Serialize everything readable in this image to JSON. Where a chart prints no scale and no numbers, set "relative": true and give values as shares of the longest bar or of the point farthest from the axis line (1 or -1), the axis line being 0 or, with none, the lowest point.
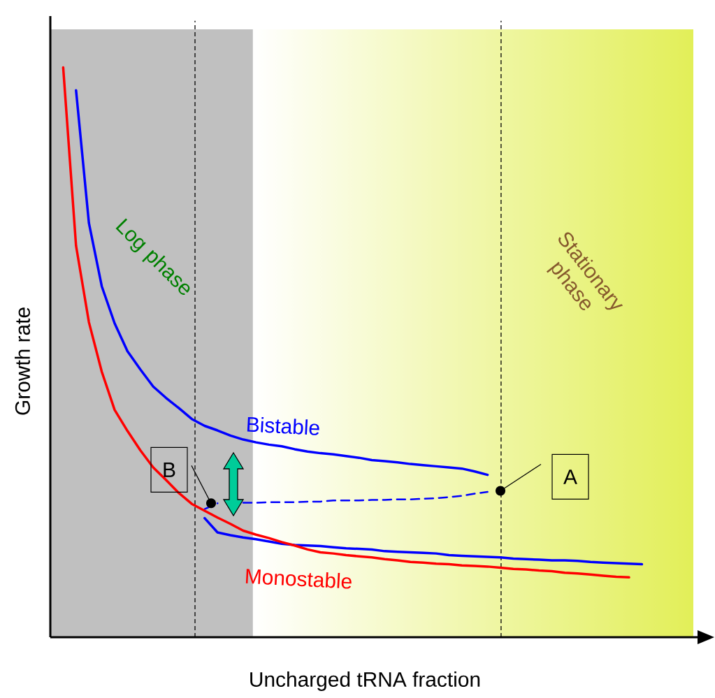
{
  "chart_data": {
    "type": "line",
    "relative": true,
    "xlabel": "Uncharged tRNA fraction",
    "ylabel": "Growth rate",
    "categories": [
      null,
      null,
      null,
      null,
      null,
      null,
      null,
      null,
      null,
      null,
      null,
      null,
      null,
      null,
      null,
      null,
      null,
      null,
      null,
      null,
      null,
      null,
      null,
      null,
      null,
      null,
      null,
      null,
      null,
      null,
      null,
      null,
      null,
      null,
      null,
      null,
      null,
      null,
      null,
      null,
      null,
      null,
      null,
      null,
      null,
      null,
      null
    ],
    "series": [
      {
        "name": "Bistable",
        "color": "#0000ff",
        "line_style": "solid",
        "values": [
          null,
          0.96,
          0.727,
          0.616,
          0.551,
          0.502,
          0.47,
          0.44,
          0.42,
          0.402,
          0.383,
          0.371,
          0.363,
          0.354,
          0.347,
          0.342,
          0.338,
          0.335,
          0.33,
          0.326,
          0.323,
          0.321,
          0.318,
          0.315,
          0.311,
          0.309,
          0.307,
          0.304,
          0.302,
          0.3,
          0.298,
          0.296,
          0.291,
          0.285,
          null,
          null,
          null,
          null,
          null,
          null,
          null,
          null,
          null,
          null,
          null,
          null,
          null
        ]
      },
      {
        "color": "#0000ff",
        "line_style": "dashed",
        "values": [
          null,
          null,
          null,
          null,
          null,
          null,
          null,
          null,
          null,
          null,
          null,
          0.225,
          0.235,
          null,
          0.236,
          0.236,
          0.237,
          0.237,
          0.237,
          0.238,
          0.238,
          0.24,
          0.24,
          0.24,
          0.241,
          0.241,
          0.242,
          0.242,
          0.243,
          0.244,
          0.246,
          0.248,
          0.252,
          0.255,
          null,
          null,
          null,
          null,
          null,
          null,
          null,
          null,
          null,
          null,
          null,
          null,
          null
        ]
      },
      {
        "color": "#0000ff",
        "line_style": "solid",
        "values": [
          null,
          null,
          null,
          null,
          null,
          null,
          null,
          null,
          null,
          null,
          null,
          0.209,
          0.184,
          0.179,
          0.175,
          0.172,
          0.168,
          0.164,
          0.162,
          0.161,
          0.16,
          0.158,
          0.156,
          0.155,
          0.154,
          0.151,
          0.15,
          0.149,
          0.148,
          0.147,
          0.144,
          0.143,
          0.142,
          0.141,
          0.14,
          0.138,
          0.137,
          0.136,
          0.135,
          0.135,
          0.134,
          0.132,
          0.131,
          0.13,
          0.129,
          0.128,
          null
        ]
      },
      {
        "name": "Monostable",
        "color": "#ff0000",
        "line_style": "solid",
        "values": [
          1.0,
          0.687,
          0.553,
          0.466,
          0.399,
          0.362,
          0.328,
          0.298,
          0.276,
          0.253,
          0.234,
          0.222,
          0.21,
          0.199,
          0.187,
          0.18,
          0.174,
          0.167,
          0.161,
          0.154,
          0.149,
          0.147,
          0.144,
          0.142,
          0.14,
          0.137,
          0.135,
          0.132,
          0.131,
          0.129,
          0.128,
          0.126,
          0.125,
          0.124,
          0.122,
          0.12,
          0.119,
          0.117,
          0.116,
          0.113,
          0.112,
          0.11,
          0.108,
          0.106,
          0.105,
          null,
          null
        ]
      }
    ],
    "annotations": [
      "A",
      "B",
      "Log phase",
      "Stationary phase"
    ]
  }
}
